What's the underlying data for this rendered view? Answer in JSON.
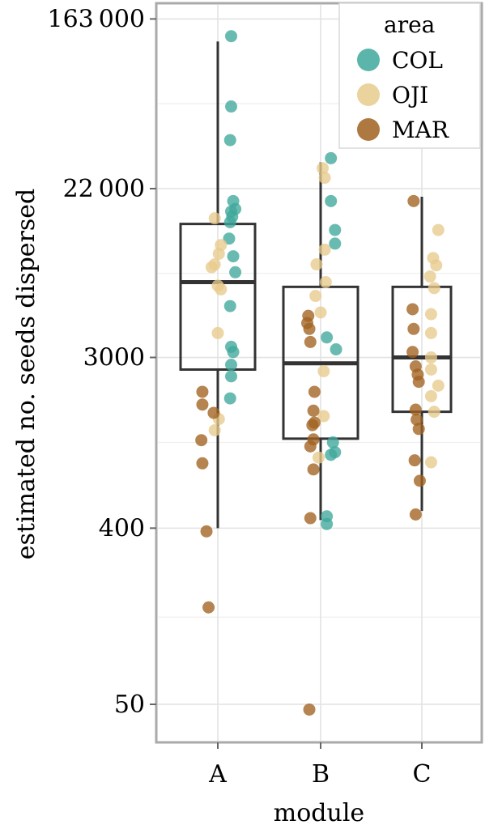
{
  "chart_data": {
    "type": "boxplot",
    "xlabel": "module",
    "ylabel": "estimated no. seeds dispersed",
    "y_scale": "log",
    "ylim": [
      40,
      200000
    ],
    "y_ticks": [
      {
        "value": 50,
        "label": "50"
      },
      {
        "value": 400,
        "label": "400"
      },
      {
        "value": 3000,
        "label": "3000"
      },
      {
        "value": 22000,
        "label": "22 000"
      },
      {
        "value": 163000,
        "label": "163 000"
      }
    ],
    "y_minor_ticks": [
      140,
      1100,
      8100,
      60000
    ],
    "categories": [
      "A",
      "B",
      "C"
    ],
    "boxes": [
      {
        "category": "A",
        "whisker_low": 400,
        "q1": 2600,
        "median": 7300,
        "q3": 14500,
        "whisker_high": 125000
      },
      {
        "category": "B",
        "whisker_low": 440,
        "q1": 1150,
        "median": 2800,
        "q3": 6900,
        "whisker_high": 30000
      },
      {
        "category": "C",
        "whisker_low": 490,
        "q1": 1580,
        "median": 3000,
        "q3": 6900,
        "whisker_high": 20000
      }
    ],
    "legend": {
      "title": "area",
      "position": "top-right",
      "entries": [
        {
          "name": "COL",
          "color": "#3fa89b"
        },
        {
          "name": "OJI",
          "color": "#e8cb8c"
        },
        {
          "name": "MAR",
          "color": "#a0621f"
        }
      ]
    },
    "points": [
      {
        "module": "A",
        "jitter": 0.13,
        "value": 133000,
        "area": "COL"
      },
      {
        "module": "A",
        "jitter": 0.13,
        "value": 58000,
        "area": "COL"
      },
      {
        "module": "A",
        "jitter": 0.12,
        "value": 39000,
        "area": "COL"
      },
      {
        "module": "A",
        "jitter": 0.15,
        "value": 19000,
        "area": "COL"
      },
      {
        "module": "A",
        "jitter": 0.17,
        "value": 17300,
        "area": "COL"
      },
      {
        "module": "A",
        "jitter": 0.13,
        "value": 16800,
        "area": "COL"
      },
      {
        "module": "A",
        "jitter": 0.14,
        "value": 15800,
        "area": "COL"
      },
      {
        "module": "A",
        "jitter": 0.12,
        "value": 14800,
        "area": "COL"
      },
      {
        "module": "A",
        "jitter": 0.11,
        "value": 12200,
        "area": "COL"
      },
      {
        "module": "A",
        "jitter": 0.15,
        "value": 9900,
        "area": "COL"
      },
      {
        "module": "A",
        "jitter": 0.17,
        "value": 8200,
        "area": "COL"
      },
      {
        "module": "A",
        "jitter": 0.12,
        "value": 5500,
        "area": "COL"
      },
      {
        "module": "A",
        "jitter": 0.13,
        "value": 3400,
        "area": "COL"
      },
      {
        "module": "A",
        "jitter": 0.15,
        "value": 3200,
        "area": "COL"
      },
      {
        "module": "A",
        "jitter": 0.13,
        "value": 2750,
        "area": "COL"
      },
      {
        "module": "A",
        "jitter": 0.13,
        "value": 2400,
        "area": "COL"
      },
      {
        "module": "A",
        "jitter": 0.12,
        "value": 1850,
        "area": "COL"
      },
      {
        "module": "A",
        "jitter": -0.03,
        "value": 15500,
        "area": "OJI"
      },
      {
        "module": "A",
        "jitter": 0.03,
        "value": 11300,
        "area": "OJI"
      },
      {
        "module": "A",
        "jitter": 0.01,
        "value": 10200,
        "area": "OJI"
      },
      {
        "module": "A",
        "jitter": -0.03,
        "value": 9000,
        "area": "OJI"
      },
      {
        "module": "A",
        "jitter": -0.06,
        "value": 8700,
        "area": "OJI"
      },
      {
        "module": "A",
        "jitter": 0.0,
        "value": 7000,
        "area": "OJI"
      },
      {
        "module": "A",
        "jitter": 0.03,
        "value": 6700,
        "area": "OJI"
      },
      {
        "module": "A",
        "jitter": 0.0,
        "value": 4000,
        "area": "OJI"
      },
      {
        "module": "A",
        "jitter": 0.01,
        "value": 1450,
        "area": "OJI"
      },
      {
        "module": "A",
        "jitter": -0.03,
        "value": 1270,
        "area": "OJI"
      },
      {
        "module": "A",
        "jitter": -0.15,
        "value": 2000,
        "area": "MAR"
      },
      {
        "module": "A",
        "jitter": -0.15,
        "value": 1720,
        "area": "MAR"
      },
      {
        "module": "A",
        "jitter": -0.04,
        "value": 1560,
        "area": "MAR"
      },
      {
        "module": "A",
        "jitter": -0.16,
        "value": 1130,
        "area": "MAR"
      },
      {
        "module": "A",
        "jitter": -0.15,
        "value": 860,
        "area": "MAR"
      },
      {
        "module": "A",
        "jitter": -0.11,
        "value": 385,
        "area": "MAR"
      },
      {
        "module": "A",
        "jitter": -0.09,
        "value": 157,
        "area": "MAR"
      },
      {
        "module": "B",
        "jitter": 0.1,
        "value": 31500,
        "area": "COL"
      },
      {
        "module": "B",
        "jitter": 0.1,
        "value": 19000,
        "area": "COL"
      },
      {
        "module": "B",
        "jitter": 0.14,
        "value": 13500,
        "area": "COL"
      },
      {
        "module": "B",
        "jitter": 0.14,
        "value": 11500,
        "area": "COL"
      },
      {
        "module": "B",
        "jitter": 0.06,
        "value": 3800,
        "area": "COL"
      },
      {
        "module": "B",
        "jitter": 0.15,
        "value": 3300,
        "area": "COL"
      },
      {
        "module": "B",
        "jitter": 0.12,
        "value": 1100,
        "area": "COL"
      },
      {
        "module": "B",
        "jitter": 0.14,
        "value": 980,
        "area": "COL"
      },
      {
        "module": "B",
        "jitter": 0.1,
        "value": 950,
        "area": "COL"
      },
      {
        "module": "B",
        "jitter": 0.06,
        "value": 460,
        "area": "COL"
      },
      {
        "module": "B",
        "jitter": 0.06,
        "value": 420,
        "area": "COL"
      },
      {
        "module": "B",
        "jitter": 0.02,
        "value": 28000,
        "area": "OJI"
      },
      {
        "module": "B",
        "jitter": 0.04,
        "value": 25000,
        "area": "OJI"
      },
      {
        "module": "B",
        "jitter": -0.04,
        "value": 9000,
        "area": "OJI"
      },
      {
        "module": "B",
        "jitter": 0.04,
        "value": 10700,
        "area": "OJI"
      },
      {
        "module": "B",
        "jitter": 0.05,
        "value": 7300,
        "area": "OJI"
      },
      {
        "module": "B",
        "jitter": -0.05,
        "value": 6200,
        "area": "OJI"
      },
      {
        "module": "B",
        "jitter": 0.0,
        "value": 5100,
        "area": "OJI"
      },
      {
        "module": "B",
        "jitter": 0.03,
        "value": 2550,
        "area": "OJI"
      },
      {
        "module": "B",
        "jitter": 0.03,
        "value": 1500,
        "area": "OJI"
      },
      {
        "module": "B",
        "jitter": -0.02,
        "value": 920,
        "area": "OJI"
      },
      {
        "module": "B",
        "jitter": -0.12,
        "value": 4900,
        "area": "MAR"
      },
      {
        "module": "B",
        "jitter": -0.13,
        "value": 4500,
        "area": "MAR"
      },
      {
        "module": "B",
        "jitter": -0.11,
        "value": 4200,
        "area": "MAR"
      },
      {
        "module": "B",
        "jitter": -0.1,
        "value": 3600,
        "area": "MAR"
      },
      {
        "module": "B",
        "jitter": -0.06,
        "value": 2000,
        "area": "MAR"
      },
      {
        "module": "B",
        "jitter": -0.07,
        "value": 1600,
        "area": "MAR"
      },
      {
        "module": "B",
        "jitter": -0.06,
        "value": 1390,
        "area": "MAR"
      },
      {
        "module": "B",
        "jitter": -0.08,
        "value": 1350,
        "area": "MAR"
      },
      {
        "module": "B",
        "jitter": -0.07,
        "value": 1140,
        "area": "MAR"
      },
      {
        "module": "B",
        "jitter": -0.1,
        "value": 1050,
        "area": "MAR"
      },
      {
        "module": "B",
        "jitter": -0.07,
        "value": 800,
        "area": "MAR"
      },
      {
        "module": "B",
        "jitter": -0.1,
        "value": 450,
        "area": "MAR"
      },
      {
        "module": "B",
        "jitter": -0.11,
        "value": 47,
        "area": "MAR"
      },
      {
        "module": "C",
        "jitter": 0.16,
        "value": 13500,
        "area": "OJI"
      },
      {
        "module": "C",
        "jitter": 0.11,
        "value": 9700,
        "area": "OJI"
      },
      {
        "module": "C",
        "jitter": 0.14,
        "value": 8900,
        "area": "OJI"
      },
      {
        "module": "C",
        "jitter": 0.08,
        "value": 7800,
        "area": "OJI"
      },
      {
        "module": "C",
        "jitter": 0.12,
        "value": 6800,
        "area": "OJI"
      },
      {
        "module": "C",
        "jitter": 0.09,
        "value": 5000,
        "area": "OJI"
      },
      {
        "module": "C",
        "jitter": 0.09,
        "value": 4000,
        "area": "OJI"
      },
      {
        "module": "C",
        "jitter": 0.09,
        "value": 3000,
        "area": "OJI"
      },
      {
        "module": "C",
        "jitter": 0.09,
        "value": 2600,
        "area": "OJI"
      },
      {
        "module": "C",
        "jitter": 0.16,
        "value": 2150,
        "area": "OJI"
      },
      {
        "module": "C",
        "jitter": 0.09,
        "value": 1900,
        "area": "OJI"
      },
      {
        "module": "C",
        "jitter": 0.12,
        "value": 1580,
        "area": "OJI"
      },
      {
        "module": "C",
        "jitter": 0.09,
        "value": 870,
        "area": "OJI"
      },
      {
        "module": "C",
        "jitter": -0.08,
        "value": 19000,
        "area": "MAR"
      },
      {
        "module": "C",
        "jitter": -0.09,
        "value": 5300,
        "area": "MAR"
      },
      {
        "module": "C",
        "jitter": -0.08,
        "value": 4200,
        "area": "MAR"
      },
      {
        "module": "C",
        "jitter": -0.09,
        "value": 3200,
        "area": "MAR"
      },
      {
        "module": "C",
        "jitter": -0.06,
        "value": 2700,
        "area": "MAR"
      },
      {
        "module": "C",
        "jitter": -0.04,
        "value": 2450,
        "area": "MAR"
      },
      {
        "module": "C",
        "jitter": -0.03,
        "value": 2250,
        "area": "MAR"
      },
      {
        "module": "C",
        "jitter": -0.06,
        "value": 1620,
        "area": "MAR"
      },
      {
        "module": "C",
        "jitter": -0.05,
        "value": 1440,
        "area": "MAR"
      },
      {
        "module": "C",
        "jitter": -0.03,
        "value": 1290,
        "area": "MAR"
      },
      {
        "module": "C",
        "jitter": -0.07,
        "value": 890,
        "area": "MAR"
      },
      {
        "module": "C",
        "jitter": -0.02,
        "value": 700,
        "area": "MAR"
      },
      {
        "module": "C",
        "jitter": -0.06,
        "value": 470,
        "area": "MAR"
      }
    ]
  }
}
